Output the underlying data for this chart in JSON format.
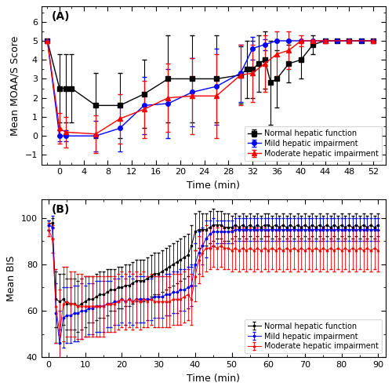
{
  "panel_A": {
    "title": "(A)",
    "ylabel": "Mean MOAA/S Score",
    "xlabel": "Time (min)",
    "xlim": [
      -3,
      54
    ],
    "ylim": [
      -1.5,
      6.8
    ],
    "xticks": [
      0,
      4,
      8,
      12,
      16,
      20,
      24,
      28,
      32,
      36,
      40,
      44,
      48,
      52
    ],
    "yticks": [
      -1,
      0,
      1,
      2,
      3,
      4,
      5,
      6
    ],
    "normal": {
      "x": [
        -2,
        0,
        1,
        2,
        6,
        10,
        14,
        18,
        22,
        26,
        30,
        31,
        32,
        33,
        34,
        35,
        36,
        38,
        40,
        42,
        44,
        46,
        48,
        50,
        52
      ],
      "y": [
        5.0,
        2.5,
        2.5,
        2.5,
        1.6,
        1.6,
        2.2,
        3.0,
        3.0,
        3.0,
        3.2,
        3.5,
        3.5,
        3.8,
        4.0,
        2.8,
        3.0,
        3.8,
        4.0,
        4.8,
        5.0,
        5.0,
        5.0,
        5.0,
        5.0
      ],
      "yerr": [
        0.0,
        1.8,
        1.8,
        1.8,
        1.7,
        1.7,
        1.8,
        2.3,
        2.3,
        2.3,
        1.5,
        1.5,
        1.5,
        1.5,
        1.5,
        2.2,
        1.5,
        1.0,
        1.0,
        0.5,
        0.0,
        0.0,
        0.0,
        0.0,
        0.0
      ],
      "color": "black",
      "marker": "s",
      "label": "Normal hepatic function"
    },
    "mild": {
      "x": [
        -2,
        0,
        1,
        6,
        10,
        14,
        18,
        22,
        26,
        30,
        32,
        34,
        36,
        38,
        40,
        42,
        44,
        46,
        48,
        50,
        52
      ],
      "y": [
        5.0,
        0.0,
        0.0,
        0.0,
        0.4,
        1.6,
        1.7,
        2.3,
        2.6,
        3.3,
        4.6,
        4.8,
        5.0,
        5.0,
        5.0,
        5.0,
        5.0,
        5.0,
        5.0,
        5.0,
        5.0
      ],
      "yerr": [
        0.0,
        0.3,
        0.3,
        0.8,
        1.2,
        1.5,
        1.8,
        1.8,
        2.0,
        1.5,
        0.6,
        0.3,
        0.0,
        0.0,
        0.0,
        0.0,
        0.0,
        0.0,
        0.0,
        0.0,
        0.0
      ],
      "color": "blue",
      "marker": "o",
      "label": "Mild hepatic impairment"
    },
    "moderate": {
      "x": [
        -2,
        0,
        1,
        6,
        10,
        14,
        18,
        22,
        26,
        30,
        32,
        34,
        36,
        38,
        40,
        42,
        44,
        48,
        52
      ],
      "y": [
        5.0,
        0.4,
        0.2,
        0.1,
        0.9,
        1.4,
        2.0,
        2.1,
        2.1,
        3.2,
        3.3,
        3.8,
        4.3,
        4.5,
        5.0,
        5.0,
        5.0,
        5.0,
        5.0
      ],
      "yerr": [
        0.0,
        0.8,
        0.8,
        1.0,
        1.3,
        1.5,
        1.8,
        2.0,
        2.2,
        1.6,
        1.5,
        1.5,
        1.2,
        1.0,
        0.3,
        0.0,
        0.0,
        0.0,
        0.0
      ],
      "color": "red",
      "marker": "^",
      "label": "Moderate hepatic impairment"
    }
  },
  "panel_B": {
    "title": "(B)",
    "ylabel": "Mean BIS",
    "xlabel": "Time (min)",
    "xlim": [
      -2,
      92
    ],
    "ylim": [
      40,
      108
    ],
    "xticks": [
      0,
      10,
      20,
      30,
      40,
      50,
      60,
      70,
      80,
      90
    ],
    "yticks": [
      40,
      60,
      80,
      100
    ],
    "normal": {
      "x": [
        0,
        1,
        2,
        3,
        4,
        5,
        6,
        7,
        8,
        9,
        10,
        11,
        12,
        13,
        14,
        15,
        16,
        17,
        18,
        19,
        20,
        21,
        22,
        23,
        24,
        25,
        26,
        27,
        28,
        29,
        30,
        31,
        32,
        33,
        34,
        35,
        36,
        37,
        38,
        39,
        40,
        41,
        42,
        43,
        44,
        45,
        46,
        47,
        48,
        49,
        50,
        51,
        52,
        53,
        54,
        55,
        56,
        57,
        58,
        59,
        60,
        61,
        62,
        63,
        64,
        65,
        66,
        67,
        68,
        69,
        70,
        71,
        72,
        73,
        74,
        75,
        76,
        77,
        78,
        79,
        80,
        81,
        82,
        83,
        84,
        85,
        86,
        87,
        88,
        89,
        90
      ],
      "y": [
        97,
        98,
        65,
        64,
        65,
        63,
        63,
        63,
        62,
        63,
        64,
        65,
        65,
        66,
        67,
        67,
        68,
        69,
        69,
        70,
        70,
        71,
        71,
        72,
        73,
        73,
        73,
        74,
        75,
        76,
        76,
        77,
        78,
        79,
        80,
        81,
        82,
        83,
        84,
        88,
        94,
        95,
        95,
        95,
        96,
        97,
        97,
        97,
        96,
        96,
        96,
        97,
        96,
        97,
        96,
        97,
        96,
        97,
        96,
        97,
        97,
        96,
        97,
        96,
        97,
        96,
        97,
        96,
        97,
        96,
        97,
        96,
        97,
        96,
        97,
        96,
        97,
        96,
        97,
        96,
        97,
        96,
        97,
        96,
        97,
        96,
        97,
        96,
        97,
        96,
        97
      ],
      "yerr": [
        2,
        2,
        12,
        12,
        11,
        11,
        11,
        11,
        11,
        11,
        11,
        10,
        10,
        10,
        10,
        10,
        10,
        9,
        9,
        9,
        9,
        9,
        9,
        9,
        9,
        9,
        9,
        9,
        9,
        9,
        9,
        9,
        9,
        9,
        9,
        9,
        9,
        9,
        9,
        9,
        8,
        8,
        7,
        7,
        7,
        7,
        6,
        6,
        6,
        6,
        5,
        5,
        5,
        5,
        5,
        5,
        5,
        5,
        5,
        5,
        5,
        5,
        5,
        5,
        5,
        5,
        5,
        5,
        5,
        5,
        5,
        5,
        5,
        5,
        5,
        5,
        5,
        5,
        5,
        5,
        5,
        5,
        5,
        5,
        5,
        5,
        5,
        5,
        5,
        5,
        5
      ],
      "color": "black",
      "marker": "s",
      "label": "Normal hepatic function"
    },
    "mild": {
      "x": [
        0,
        1,
        2,
        3,
        4,
        5,
        6,
        7,
        8,
        9,
        10,
        11,
        12,
        13,
        14,
        15,
        16,
        17,
        18,
        19,
        20,
        21,
        22,
        23,
        24,
        25,
        26,
        27,
        28,
        29,
        30,
        31,
        32,
        33,
        34,
        35,
        36,
        37,
        38,
        39,
        40,
        41,
        42,
        43,
        44,
        45,
        46,
        47,
        48,
        49,
        50,
        51,
        52,
        53,
        54,
        55,
        56,
        57,
        58,
        59,
        60,
        61,
        62,
        63,
        64,
        65,
        66,
        67,
        68,
        69,
        70,
        71,
        72,
        73,
        74,
        75,
        76,
        77,
        78,
        79,
        80,
        81,
        82,
        83,
        84,
        85,
        86,
        87,
        88,
        89,
        90
      ],
      "y": [
        97,
        96,
        59,
        46,
        57,
        58,
        58,
        59,
        59,
        60,
        60,
        61,
        61,
        62,
        62,
        62,
        63,
        63,
        64,
        64,
        65,
        64,
        65,
        64,
        65,
        65,
        65,
        65,
        65,
        66,
        66,
        66,
        67,
        67,
        68,
        68,
        69,
        69,
        70,
        71,
        80,
        85,
        88,
        91,
        93,
        94,
        94,
        94,
        94,
        94,
        94,
        95,
        95,
        95,
        95,
        95,
        95,
        95,
        95,
        95,
        95,
        95,
        95,
        95,
        95,
        95,
        95,
        95,
        95,
        95,
        95,
        95,
        95,
        95,
        95,
        95,
        95,
        95,
        95,
        95,
        95,
        95,
        95,
        95,
        95,
        95,
        95,
        95,
        95,
        95,
        95
      ],
      "yerr": [
        2,
        5,
        13,
        14,
        13,
        12,
        12,
        12,
        12,
        12,
        11,
        11,
        11,
        11,
        11,
        11,
        10,
        10,
        10,
        10,
        10,
        10,
        10,
        10,
        10,
        10,
        10,
        9,
        9,
        9,
        9,
        9,
        9,
        9,
        9,
        9,
        9,
        9,
        9,
        9,
        9,
        9,
        8,
        8,
        6,
        6,
        5,
        5,
        5,
        5,
        5,
        5,
        5,
        5,
        5,
        5,
        5,
        5,
        5,
        5,
        5,
        5,
        5,
        5,
        5,
        5,
        5,
        5,
        5,
        5,
        5,
        5,
        5,
        5,
        5,
        5,
        5,
        5,
        5,
        5,
        5,
        5,
        5,
        5,
        5,
        5,
        5,
        5,
        5,
        5,
        5
      ],
      "color": "blue",
      "marker": "o",
      "label": "Mild hepatic impairment"
    },
    "moderate": {
      "x": [
        0,
        1,
        2,
        3,
        4,
        5,
        6,
        7,
        8,
        9,
        10,
        11,
        12,
        13,
        14,
        15,
        16,
        17,
        18,
        19,
        20,
        21,
        22,
        23,
        24,
        25,
        26,
        27,
        28,
        29,
        30,
        31,
        32,
        33,
        34,
        35,
        36,
        37,
        38,
        39,
        40,
        41,
        42,
        43,
        44,
        45,
        46,
        47,
        48,
        49,
        50,
        51,
        52,
        53,
        54,
        55,
        56,
        57,
        58,
        59,
        60,
        61,
        62,
        63,
        64,
        65,
        66,
        67,
        68,
        69,
        70,
        71,
        72,
        73,
        74,
        75,
        76,
        77,
        78,
        79,
        80,
        81,
        82,
        83,
        84,
        85,
        86,
        87,
        88,
        89,
        90
      ],
      "y": [
        95,
        91,
        62,
        50,
        63,
        64,
        63,
        63,
        62,
        62,
        62,
        62,
        62,
        62,
        62,
        62,
        63,
        63,
        63,
        64,
        65,
        64,
        65,
        64,
        65,
        64,
        65,
        64,
        65,
        64,
        64,
        64,
        64,
        64,
        65,
        65,
        65,
        66,
        67,
        65,
        75,
        82,
        85,
        87,
        87,
        88,
        87,
        88,
        87,
        87,
        86,
        87,
        86,
        87,
        86,
        87,
        86,
        87,
        86,
        87,
        86,
        87,
        86,
        87,
        86,
        87,
        86,
        87,
        86,
        87,
        86,
        87,
        86,
        87,
        86,
        87,
        86,
        87,
        86,
        87,
        86,
        87,
        86,
        87,
        86,
        87,
        86,
        87,
        86,
        87,
        86
      ],
      "yerr": [
        3,
        6,
        16,
        19,
        16,
        15,
        14,
        14,
        14,
        14,
        13,
        13,
        13,
        13,
        13,
        13,
        12,
        12,
        12,
        12,
        12,
        12,
        12,
        12,
        12,
        12,
        12,
        11,
        11,
        11,
        11,
        11,
        11,
        11,
        11,
        11,
        11,
        11,
        11,
        11,
        11,
        10,
        10,
        10,
        9,
        9,
        9,
        9,
        9,
        9,
        9,
        9,
        9,
        9,
        9,
        9,
        9,
        9,
        9,
        9,
        9,
        9,
        9,
        9,
        9,
        9,
        9,
        9,
        9,
        9,
        9,
        9,
        9,
        9,
        9,
        9,
        9,
        9,
        9,
        9,
        9,
        9,
        9,
        9,
        9,
        9,
        9,
        9,
        9,
        9,
        9
      ],
      "color": "red",
      "marker": "^",
      "label": "Moderate hepatic impairment"
    }
  }
}
